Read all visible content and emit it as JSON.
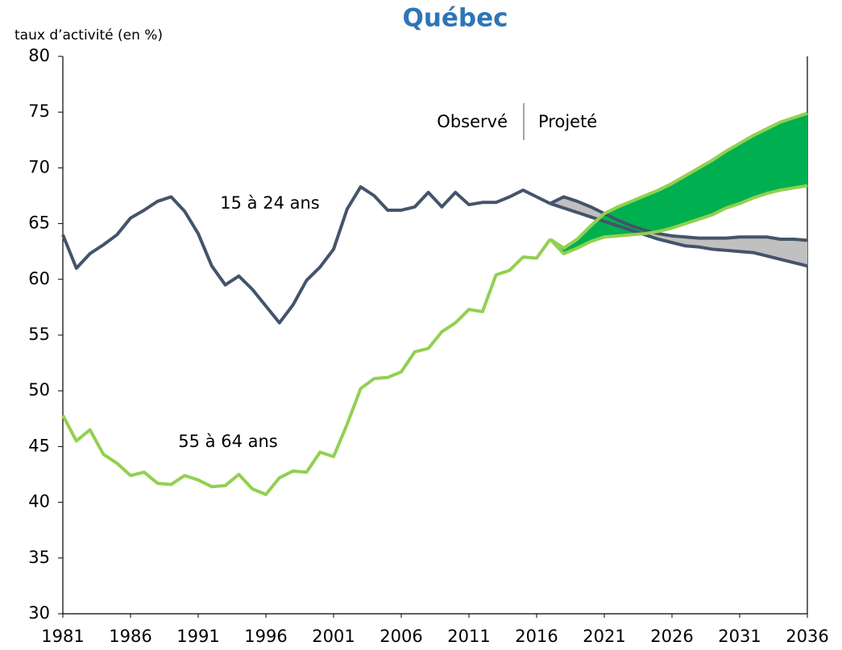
{
  "chart_data": {
    "type": "line",
    "title": "Québec",
    "y_axis_label": "taux d’activité (en %)",
    "annotations": {
      "observed": "Observé",
      "projected": "Projeté"
    },
    "xlim": [
      1981,
      2036
    ],
    "xticks": [
      1981,
      1986,
      1991,
      1996,
      2001,
      2006,
      2011,
      2016,
      2021,
      2026,
      2031,
      2036
    ],
    "ylim": [
      30,
      80
    ],
    "yticks": [
      30,
      35,
      40,
      45,
      50,
      55,
      60,
      65,
      70,
      75,
      80
    ],
    "grid": false,
    "x": [
      1981,
      1982,
      1983,
      1984,
      1985,
      1986,
      1987,
      1988,
      1989,
      1990,
      1991,
      1992,
      1993,
      1994,
      1995,
      1996,
      1997,
      1998,
      1999,
      2000,
      2001,
      2002,
      2003,
      2004,
      2005,
      2006,
      2007,
      2008,
      2009,
      2010,
      2011,
      2012,
      2013,
      2014,
      2015,
      2016,
      2017
    ],
    "projection_x": [
      2017,
      2018,
      2019,
      2020,
      2021,
      2022,
      2023,
      2024,
      2025,
      2026,
      2027,
      2028,
      2029,
      2030,
      2031,
      2032,
      2033,
      2034,
      2035,
      2036
    ],
    "series": [
      {
        "name": "15 à 24 ans",
        "color": "#44546a",
        "band_color": "#c0c0c0",
        "values": [
          64.0,
          61.0,
          62.3,
          63.1,
          64.0,
          65.5,
          66.2,
          67.0,
          67.4,
          66.1,
          64.1,
          61.2,
          59.5,
          60.3,
          59.1,
          57.6,
          56.1,
          57.7,
          59.9,
          61.1,
          62.7,
          66.3,
          68.3,
          67.5,
          66.2,
          66.2,
          66.5,
          67.8,
          66.5,
          67.8,
          66.7,
          66.9,
          66.9,
          67.4,
          68.0,
          67.4,
          66.8
        ],
        "high": [
          66.8,
          67.4,
          67.0,
          66.5,
          65.9,
          65.3,
          64.8,
          64.4,
          64.1,
          63.9,
          63.8,
          63.7,
          63.7,
          63.7,
          63.8,
          63.8,
          63.8,
          63.6,
          63.6,
          63.5
        ],
        "low": [
          66.8,
          66.4,
          66.0,
          65.6,
          65.2,
          64.8,
          64.4,
          64.0,
          63.6,
          63.3,
          63.0,
          62.9,
          62.7,
          62.6,
          62.5,
          62.4,
          62.1,
          61.8,
          61.5,
          61.2
        ]
      },
      {
        "name": "55 à 64 ans",
        "color": "#92d050",
        "band_color": "#00b050",
        "values": [
          47.8,
          45.5,
          46.5,
          44.3,
          43.5,
          42.4,
          42.7,
          41.7,
          41.6,
          42.4,
          42.0,
          41.4,
          41.5,
          42.5,
          41.2,
          40.7,
          42.2,
          42.8,
          42.7,
          44.5,
          44.1,
          47.0,
          50.2,
          51.1,
          51.2,
          51.7,
          53.5,
          53.8,
          55.3,
          56.1,
          57.3,
          57.1,
          60.4,
          60.8,
          62.0,
          61.9,
          63.6
        ],
        "high": [
          63.6,
          62.8,
          63.6,
          64.8,
          65.9,
          66.5,
          67.0,
          67.5,
          68.0,
          68.6,
          69.3,
          70.0,
          70.7,
          71.5,
          72.2,
          72.9,
          73.5,
          74.1,
          74.5,
          74.9
        ],
        "low": [
          63.6,
          62.3,
          62.8,
          63.4,
          63.8,
          63.9,
          64.0,
          64.1,
          64.3,
          64.6,
          65.0,
          65.4,
          65.8,
          66.4,
          66.8,
          67.3,
          67.7,
          68.0,
          68.2,
          68.4
        ]
      }
    ]
  }
}
